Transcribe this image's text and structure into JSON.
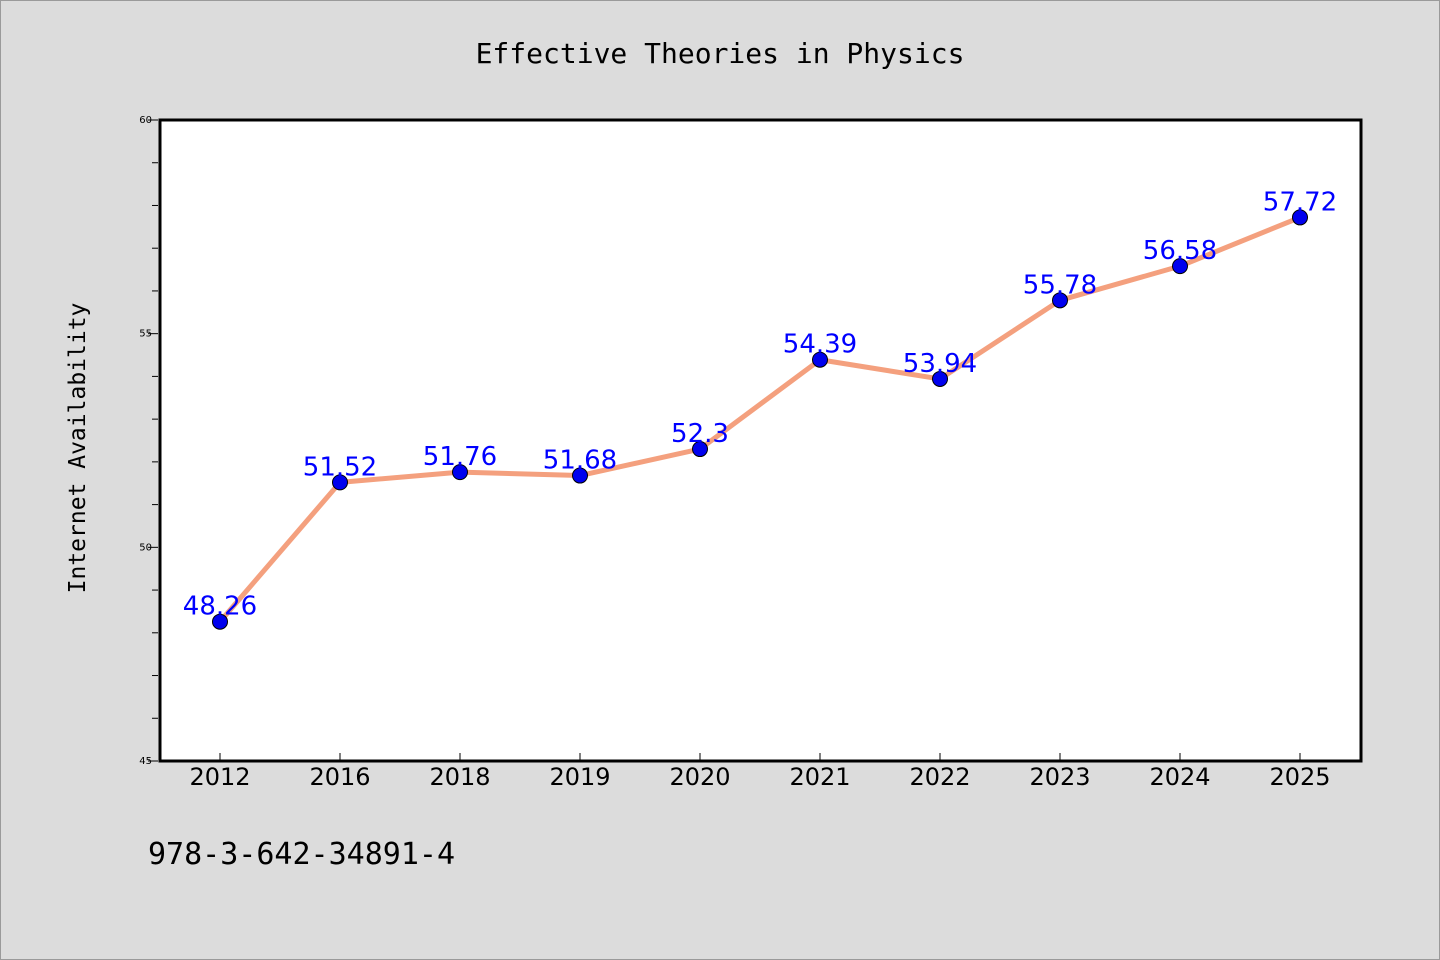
{
  "chart_data": {
    "type": "line",
    "title": "Effective Theories in Physics",
    "xlabel": "",
    "ylabel": "Internet Availability",
    "categories": [
      "2012",
      "2016",
      "2018",
      "2019",
      "2020",
      "2021",
      "2022",
      "2023",
      "2024",
      "2025"
    ],
    "series": [
      {
        "values": [
          48.26,
          51.52,
          51.76,
          51.68,
          52.3,
          54.39,
          53.94,
          55.78,
          56.58,
          57.72
        ],
        "data_labels": [
          "48.26",
          "51.52",
          "51.76",
          "51.68",
          "52.3",
          "54.39",
          "53.94",
          "55.78",
          "56.58",
          "57.72"
        ],
        "line_color": "#f4a07e",
        "marker_color": "#0000ee",
        "label_color": "#0000ff"
      }
    ],
    "ylim": [
      45,
      60
    ],
    "yticks": [
      "45",
      "50",
      "55",
      "60"
    ],
    "y_minor_step": 1,
    "grid": false,
    "legend": "none"
  },
  "footer_text": "978-3-642-34891-4"
}
